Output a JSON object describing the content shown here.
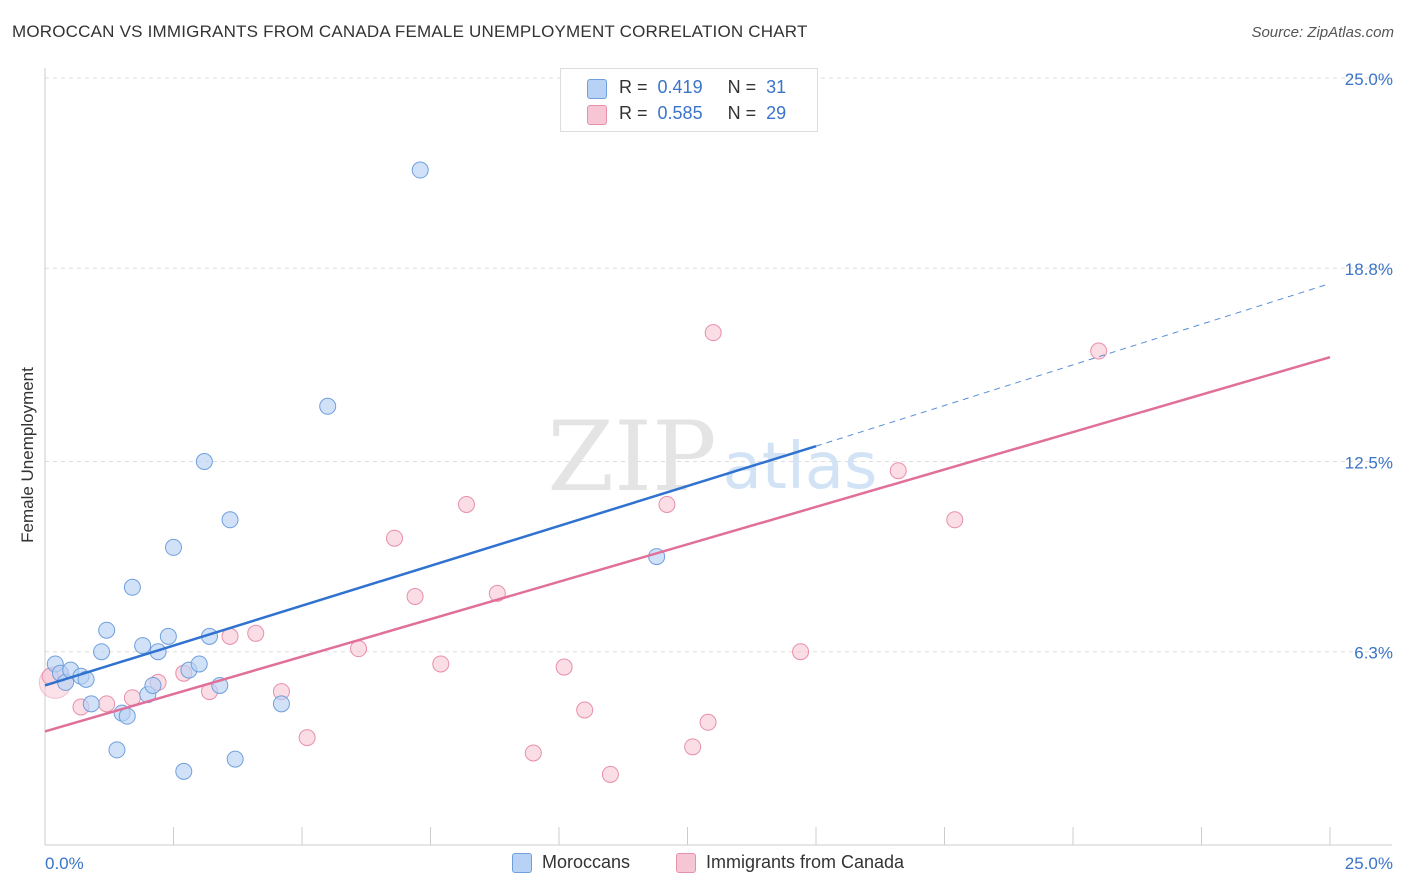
{
  "title": "MOROCCAN VS IMMIGRANTS FROM CANADA FEMALE UNEMPLOYMENT CORRELATION CHART",
  "source": "Source: ZipAtlas.com",
  "watermark": {
    "zip": "ZIP",
    "atlas": "atlas"
  },
  "legend": {
    "r_label": "R =",
    "n_label": "N =",
    "moroccans": {
      "r": "0.419",
      "n": "31"
    },
    "canada": {
      "r": "0.585",
      "n": "29"
    }
  },
  "colors": {
    "blue_fill": "#b8d2f5",
    "blue_stroke": "#6f9fdc",
    "blue_line": "#2f72cf",
    "pink_fill": "#f7c6d4",
    "pink_stroke": "#e88fab",
    "pink_line": "#e0709a",
    "tick_label": "#3b74c8",
    "grid": "#dddddd"
  },
  "chart_data": {
    "type": "scatter",
    "title": "MOROCCAN VS IMMIGRANTS FROM CANADA FEMALE UNEMPLOYMENT CORRELATION CHART",
    "xlabel": "",
    "ylabel": "Female Unemployment",
    "xlim": [
      0,
      25
    ],
    "ylim": [
      0,
      25
    ],
    "x_tick_labels": [
      "0.0%",
      "25.0%"
    ],
    "y_ticks": [
      6.3,
      12.5,
      18.8,
      25.0
    ],
    "y_tick_labels": [
      "6.3%",
      "12.5%",
      "18.8%",
      "25.0%"
    ],
    "grid": true,
    "legend_position": "top-center",
    "series": [
      {
        "name": "Moroccans",
        "color": "blue",
        "r": 0.419,
        "n": 31,
        "trend": {
          "x0": 0,
          "y0": 5.2,
          "x1": 15.0,
          "y1": 13.0,
          "dashed_to_x": 25,
          "dashed_to_y": 18.3
        },
        "points": [
          [
            0.2,
            5.9
          ],
          [
            0.3,
            5.6
          ],
          [
            0.4,
            5.3
          ],
          [
            0.5,
            5.7
          ],
          [
            0.7,
            5.5
          ],
          [
            0.8,
            5.4
          ],
          [
            0.9,
            4.6
          ],
          [
            1.1,
            6.3
          ],
          [
            1.2,
            7.0
          ],
          [
            1.4,
            3.1
          ],
          [
            1.5,
            4.3
          ],
          [
            1.6,
            4.2
          ],
          [
            1.7,
            8.4
          ],
          [
            1.9,
            6.5
          ],
          [
            2.0,
            4.9
          ],
          [
            2.1,
            5.2
          ],
          [
            2.2,
            6.3
          ],
          [
            2.4,
            6.8
          ],
          [
            2.5,
            9.7
          ],
          [
            2.7,
            2.4
          ],
          [
            2.8,
            5.7
          ],
          [
            3.0,
            5.9
          ],
          [
            3.1,
            12.5
          ],
          [
            3.2,
            6.8
          ],
          [
            3.4,
            5.2
          ],
          [
            3.6,
            10.6
          ],
          [
            3.7,
            2.8
          ],
          [
            4.6,
            4.6
          ],
          [
            5.5,
            14.3
          ],
          [
            7.3,
            22.0
          ],
          [
            11.9,
            9.4
          ]
        ]
      },
      {
        "name": "Immigrants from Canada",
        "color": "pink",
        "r": 0.585,
        "n": 29,
        "trend": {
          "x0": 0,
          "y0": 3.7,
          "x1": 25,
          "y1": 15.9
        },
        "points": [
          [
            0.1,
            5.5
          ],
          [
            0.7,
            4.5
          ],
          [
            1.2,
            4.6
          ],
          [
            1.7,
            4.8
          ],
          [
            2.2,
            5.3
          ],
          [
            2.7,
            5.6
          ],
          [
            3.2,
            5.0
          ],
          [
            3.6,
            6.8
          ],
          [
            4.1,
            6.9
          ],
          [
            4.6,
            5.0
          ],
          [
            5.1,
            3.5
          ],
          [
            6.1,
            6.4
          ],
          [
            6.8,
            10.0
          ],
          [
            7.2,
            8.1
          ],
          [
            7.7,
            5.9
          ],
          [
            8.2,
            11.1
          ],
          [
            8.8,
            8.2
          ],
          [
            9.5,
            3.0
          ],
          [
            10.1,
            5.8
          ],
          [
            10.5,
            4.4
          ],
          [
            11.0,
            2.3
          ],
          [
            12.1,
            11.1
          ],
          [
            12.6,
            3.2
          ],
          [
            12.9,
            4.0
          ],
          [
            13.0,
            16.7
          ],
          [
            14.7,
            6.3
          ],
          [
            16.6,
            12.2
          ],
          [
            17.7,
            10.6
          ],
          [
            20.5,
            16.1
          ]
        ]
      }
    ]
  },
  "bottom_legend": {
    "moroccans": "Moroccans",
    "canada": "Immigrants from Canada"
  }
}
